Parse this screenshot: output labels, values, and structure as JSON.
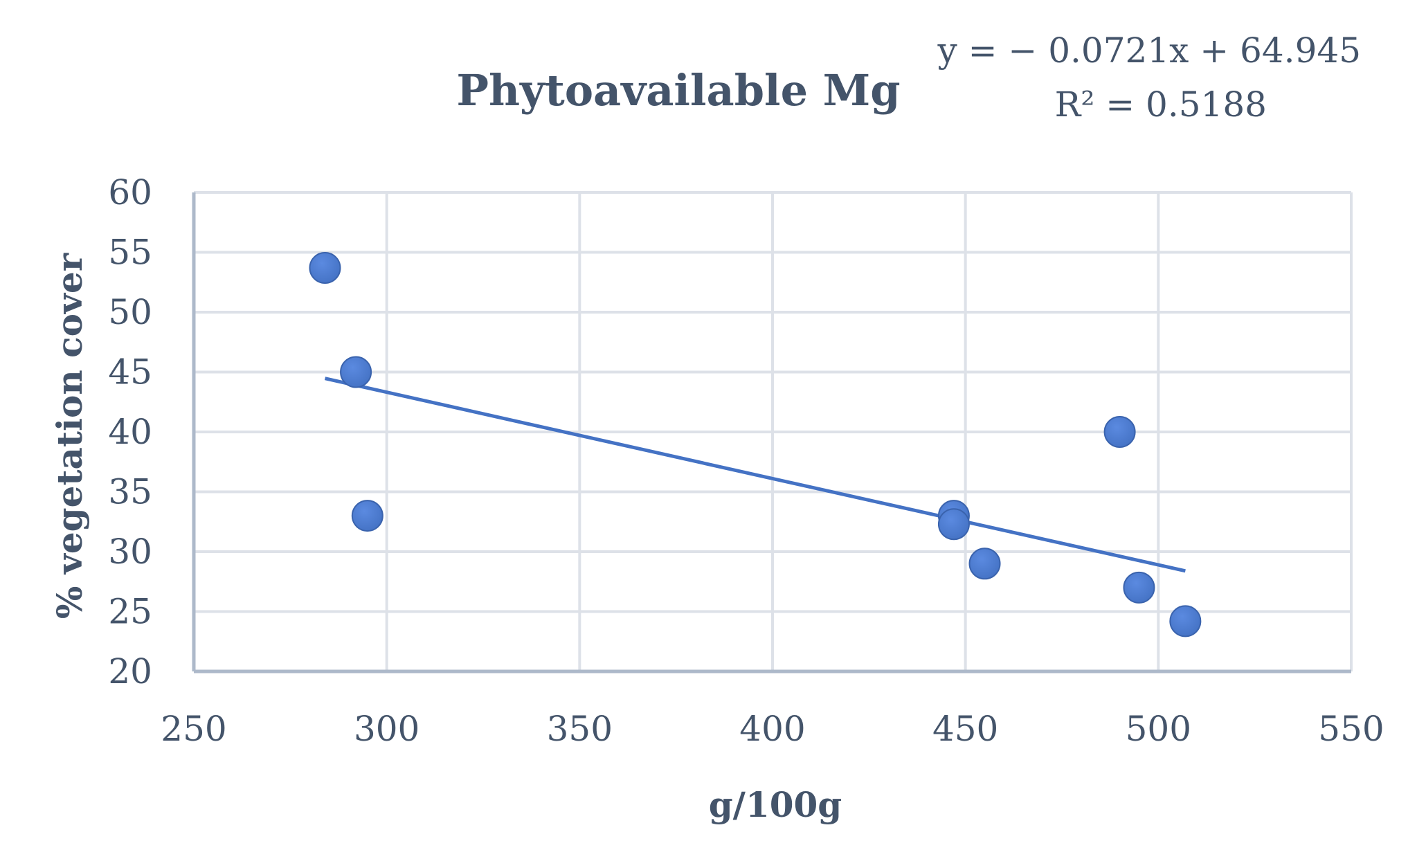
{
  "chart_data": {
    "type": "scatter",
    "title": "Phytoavailable Mg",
    "xlabel": "g/100g",
    "ylabel": "%  vegetation cover",
    "xlim": [
      250,
      550
    ],
    "ylim": [
      20,
      60
    ],
    "xticks": [
      250,
      300,
      350,
      400,
      450,
      500,
      550
    ],
    "yticks": [
      20,
      25,
      30,
      35,
      40,
      45,
      50,
      55,
      60
    ],
    "grid": true,
    "marker_color": "#4472c4",
    "trendline_color": "#4472c4",
    "series": [
      {
        "points": [
          {
            "x": 284,
            "y": 53.7
          },
          {
            "x": 292,
            "y": 45
          },
          {
            "x": 295,
            "y": 33
          },
          {
            "x": 447,
            "y": 33
          },
          {
            "x": 447,
            "y": 32.3
          },
          {
            "x": 455,
            "y": 29
          },
          {
            "x": 490,
            "y": 40
          },
          {
            "x": 495,
            "y": 27
          },
          {
            "x": 507,
            "y": 24.2
          }
        ]
      }
    ],
    "trendline": {
      "type": "linear",
      "slope": -0.0721,
      "intercept": 64.945,
      "x_range": [
        284,
        507
      ],
      "equation_label": "y = − 0.0721x + 64.945",
      "r2_label": "R² = 0.5188"
    }
  }
}
